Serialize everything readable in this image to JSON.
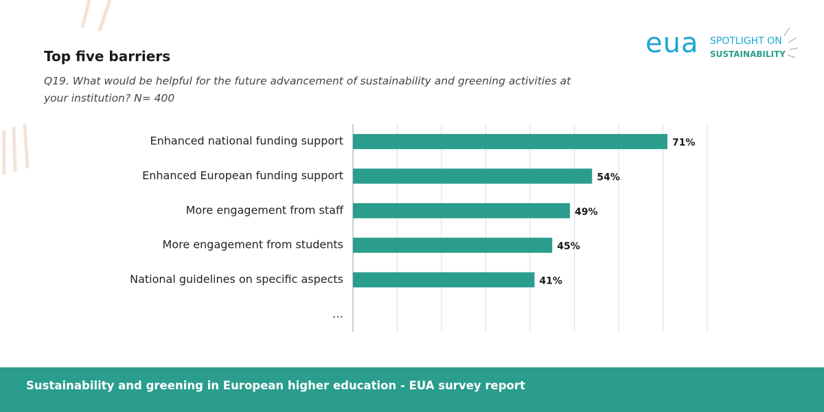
{
  "header": {
    "title": "Top five barriers",
    "subtitle": "Q19. What would be helpful for the future advancement of sustainability and greening activities at your institution? N= 400"
  },
  "logo": {
    "brand": "eua",
    "line1": "SPOTLIGHT ON",
    "line2": "SUSTAINABILITY"
  },
  "chart_data": {
    "type": "bar",
    "orientation": "horizontal",
    "categories": [
      "Enhanced national funding support",
      "Enhanced European funding support",
      "More engagement from staff",
      "More engagement from students",
      "National guidelines on specific aspects",
      "…"
    ],
    "values": [
      71,
      54,
      49,
      45,
      41,
      null
    ],
    "value_labels": [
      "71%",
      "54%",
      "49%",
      "45%",
      "41%",
      null
    ],
    "color": "#2a9d8c",
    "xlim": [
      0,
      80
    ],
    "xticks": [
      0,
      10,
      20,
      30,
      40,
      50,
      60,
      70,
      80
    ],
    "grid": true
  },
  "footer": {
    "text": "Sustainability and greening in European higher education - EUA survey report"
  }
}
